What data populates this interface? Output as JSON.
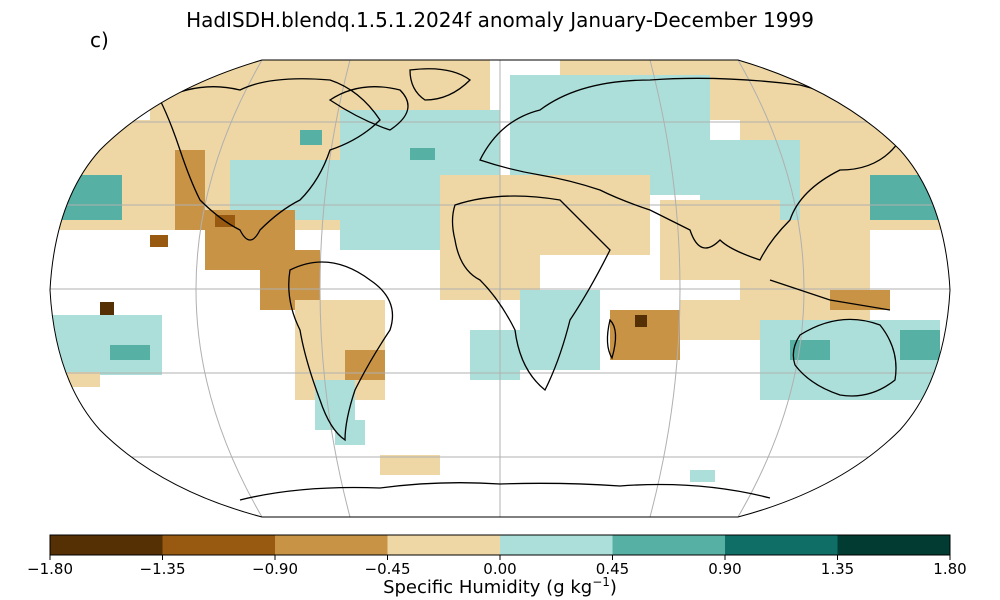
{
  "title": "HadISDH.blendq.1.5.1.2024f anomaly January-December 1999",
  "panel_label": "c)",
  "colorbar": {
    "label_text": "Specific Humidity (g kg",
    "label_exponent": "−1",
    "label_close": ")",
    "ticks": [
      "−1.80",
      "−1.35",
      "−0.90",
      "−0.45",
      "0.00",
      "0.45",
      "0.90",
      "1.35",
      "1.80"
    ],
    "colors": [
      "#553005",
      "#985a10",
      "#c99346",
      "#eed7a4",
      "#acdfd9",
      "#57b0a4",
      "#0f6f66",
      "#013b31"
    ]
  },
  "colors": {
    "gridline": "#b0b0b0",
    "coastline": "#000000",
    "land_mask": "#ffffff"
  }
}
